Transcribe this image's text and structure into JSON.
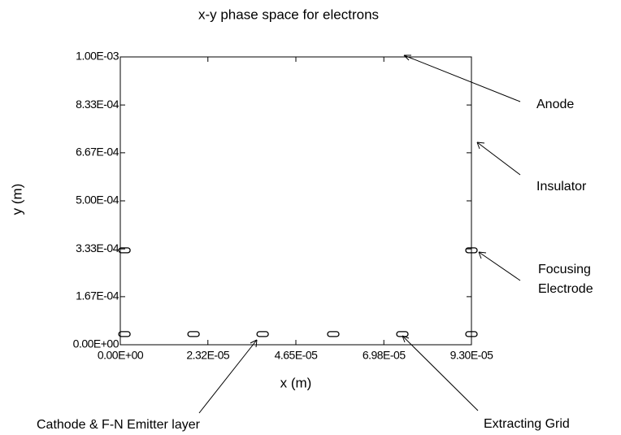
{
  "chart_data": {
    "type": "scatter",
    "title": "x-y phase space for electrons",
    "x_label": "x (m)",
    "y_label": "y (m)",
    "xlim": [
      0,
      9.3e-05
    ],
    "ylim": [
      0,
      0.001
    ],
    "xticks": [
      {
        "value": 0,
        "label": "0.00E+00"
      },
      {
        "value": 2.32e-05,
        "label": "2.32E-05"
      },
      {
        "value": 4.65e-05,
        "label": "4.65E-05"
      },
      {
        "value": 6.98e-05,
        "label": "6.98E-05"
      },
      {
        "value": 9.3e-05,
        "label": "9.30E-05"
      }
    ],
    "yticks": [
      {
        "value": 0,
        "label": "0.00E+00"
      },
      {
        "value": 0.000167,
        "label": "1.67E-04"
      },
      {
        "value": 0.000333,
        "label": "3.33E-04"
      },
      {
        "value": 0.0005,
        "label": "5.00E-04"
      },
      {
        "value": 0.000667,
        "label": "6.67E-04"
      },
      {
        "value": 0.000833,
        "label": "8.33E-04"
      },
      {
        "value": 0.001,
        "label": "1.00E-03"
      }
    ],
    "series": [
      {
        "color": "#000000",
        "x": [
          1.1e-06,
          1.94e-05,
          3.77e-05,
          5.64e-05,
          7.47e-05,
          9.3e-05,
          1.1e-06,
          9.3e-05
        ],
        "values": [
          3.7e-05,
          3.7e-05,
          3.7e-05,
          3.7e-05,
          3.7e-05,
          3.7e-05,
          0.000328,
          0.000328
        ]
      }
    ],
    "annotations": [
      "Anode",
      "Insulator",
      "Focusing Electrode",
      "Extracting Grid",
      "Cathode & F-N Emitter layer"
    ]
  }
}
